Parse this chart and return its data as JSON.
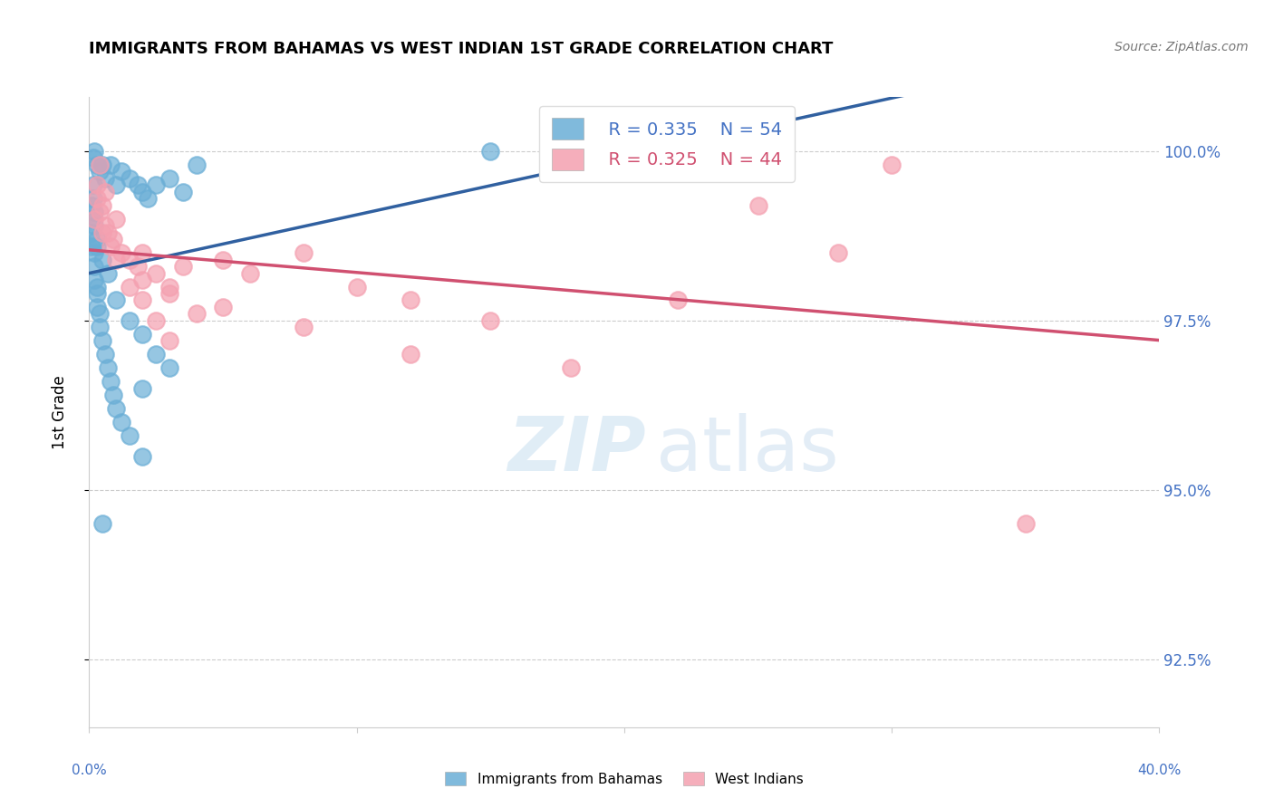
{
  "title": "IMMIGRANTS FROM BAHAMAS VS WEST INDIAN 1ST GRADE CORRELATION CHART",
  "source": "Source: ZipAtlas.com",
  "ylabel": "1st Grade",
  "ylabel_right_ticks": [
    92.5,
    95.0,
    97.5,
    100.0
  ],
  "ylabel_right_labels": [
    "92.5%",
    "95.0%",
    "97.5%",
    "100.0%"
  ],
  "xlim": [
    0.0,
    40.0
  ],
  "ylim": [
    91.5,
    100.8
  ],
  "watermark_zip": "ZIP",
  "watermark_atlas": "atlas",
  "legend_blue_R": "R = 0.335",
  "legend_blue_N": "N = 54",
  "legend_pink_R": "R = 0.325",
  "legend_pink_N": "N = 44",
  "blue_color": "#6aaed6",
  "pink_color": "#f4a0b0",
  "blue_line_color": "#3060a0",
  "pink_line_color": "#d05070",
  "blue_scatter_x": [
    0.2,
    0.3,
    0.15,
    0.4,
    0.5,
    0.6,
    0.8,
    1.0,
    1.2,
    1.5,
    1.8,
    2.0,
    2.2,
    2.5,
    3.0,
    3.5,
    4.0,
    0.1,
    0.1,
    0.1,
    0.1,
    0.2,
    0.2,
    0.2,
    0.3,
    0.3,
    0.3,
    0.4,
    0.4,
    0.5,
    0.6,
    0.7,
    0.8,
    0.9,
    1.0,
    1.2,
    1.5,
    2.0,
    2.5,
    0.2,
    0.3,
    0.5,
    0.7,
    1.0,
    1.5,
    2.0,
    2.0,
    3.0,
    0.15,
    0.15,
    0.2,
    0.3,
    0.5,
    15.0
  ],
  "blue_scatter_y": [
    100.0,
    99.8,
    99.9,
    99.7,
    99.8,
    99.6,
    99.8,
    99.5,
    99.7,
    99.6,
    99.5,
    99.4,
    99.3,
    99.5,
    99.6,
    99.4,
    99.8,
    99.2,
    99.0,
    98.8,
    98.6,
    98.5,
    98.3,
    98.1,
    98.0,
    97.9,
    97.7,
    97.6,
    97.4,
    97.2,
    97.0,
    96.8,
    96.6,
    96.4,
    96.2,
    96.0,
    95.8,
    95.5,
    97.0,
    99.1,
    98.7,
    98.4,
    98.2,
    97.8,
    97.5,
    97.3,
    96.5,
    96.8,
    99.5,
    99.3,
    98.9,
    98.6,
    94.5,
    100.0
  ],
  "pink_scatter_x": [
    0.2,
    0.5,
    0.8,
    1.2,
    1.8,
    2.5,
    3.5,
    5.0,
    6.0,
    8.0,
    10.0,
    12.0,
    15.0,
    20.0,
    25.0,
    30.0,
    0.3,
    0.4,
    0.6,
    0.9,
    1.5,
    2.0,
    3.0,
    4.0,
    0.3,
    0.5,
    0.7,
    1.0,
    1.5,
    2.0,
    2.5,
    3.0,
    0.4,
    0.6,
    1.0,
    2.0,
    3.0,
    5.0,
    8.0,
    12.0,
    18.0,
    22.0,
    28.0,
    35.0
  ],
  "pink_scatter_y": [
    99.0,
    98.8,
    98.6,
    98.5,
    98.3,
    98.2,
    98.3,
    98.4,
    98.2,
    98.5,
    98.0,
    97.8,
    97.5,
    100.0,
    99.2,
    99.8,
    99.3,
    99.1,
    98.9,
    98.7,
    98.4,
    98.1,
    97.9,
    97.6,
    99.5,
    99.2,
    98.8,
    98.4,
    98.0,
    97.8,
    97.5,
    97.2,
    99.8,
    99.4,
    99.0,
    98.5,
    98.0,
    97.7,
    97.4,
    97.0,
    96.8,
    97.8,
    98.5,
    94.5
  ],
  "bottom_legend_left_label": "Immigrants from Bahamas",
  "bottom_legend_right_label": "West Indians"
}
